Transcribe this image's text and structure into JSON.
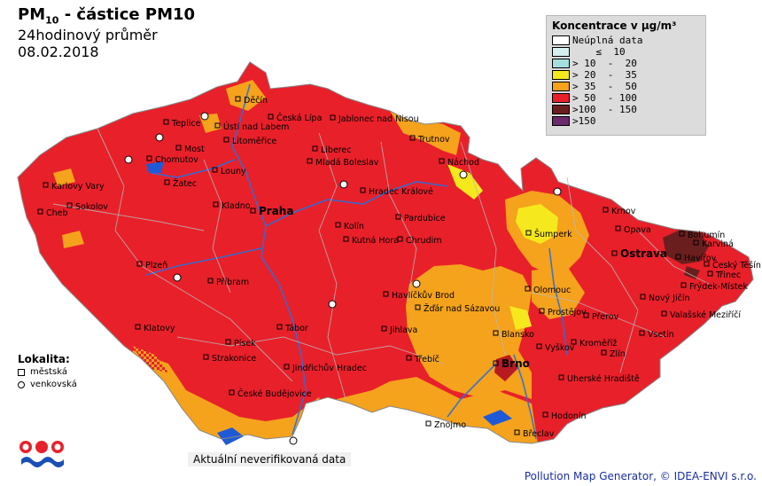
{
  "header": {
    "title_main": "PM",
    "title_sub": "10",
    "title_rest": " - částice PM10",
    "subtitle": "24hodinový průměr",
    "date": "08.02.2018"
  },
  "legend": {
    "title": "Koncentrace v μg/m³",
    "items": [
      {
        "label": "Neúplná data",
        "color": "#ffffff"
      },
      {
        "label": "    ≤  10",
        "color": "#d6f0f0"
      },
      {
        "label": "> 10  -  20",
        "color": "#a6dede"
      },
      {
        "label": "> 20  -  35",
        "color": "#f5e81c"
      },
      {
        "label": "> 35  -  50",
        "color": "#f5a21c"
      },
      {
        "label": "> 50  - 100",
        "color": "#e8202a"
      },
      {
        "label": ">100  - 150",
        "color": "#6b1e1e"
      },
      {
        "label": ">150",
        "color": "#6b2a6b"
      }
    ]
  },
  "map": {
    "towns": [
      {
        "name": "Děčín"
      },
      {
        "name": "Liberec"
      },
      {
        "name": "Česká Lípa"
      },
      {
        "name": "Jablonec nad Nisou"
      },
      {
        "name": "Teplice"
      },
      {
        "name": "Ústí nad Labem"
      },
      {
        "name": "Litoměřice"
      },
      {
        "name": "Trutnov"
      },
      {
        "name": "Most"
      },
      {
        "name": "Chomutov"
      },
      {
        "name": "Mladá Boleslav"
      },
      {
        "name": "Náchod"
      },
      {
        "name": "Karlovy Vary"
      },
      {
        "name": "Žatec"
      },
      {
        "name": "Louny"
      },
      {
        "name": "Sokolov"
      },
      {
        "name": "Hradec Králové"
      },
      {
        "name": "Cheb"
      },
      {
        "name": "Kladno"
      },
      {
        "name": "Praha"
      },
      {
        "name": "Krnov"
      },
      {
        "name": "Pardubice"
      },
      {
        "name": "Kolín"
      },
      {
        "name": "Bohumín"
      },
      {
        "name": "Opava"
      },
      {
        "name": "Šumperk"
      },
      {
        "name": "Karviná"
      },
      {
        "name": "Ostrava"
      },
      {
        "name": "Kutná Hora"
      },
      {
        "name": "Chrudim"
      },
      {
        "name": "Havířov"
      },
      {
        "name": "Český Těšín"
      },
      {
        "name": "Třinec"
      },
      {
        "name": "Plzeň"
      },
      {
        "name": "Frýdek-Místek"
      },
      {
        "name": "Příbram"
      },
      {
        "name": "Olomouc"
      },
      {
        "name": "Nový Jičín"
      },
      {
        "name": "Havlíčkův Brod"
      },
      {
        "name": "Žďár nad Sázavou"
      },
      {
        "name": "Prostějov"
      },
      {
        "name": "Valašské Meziříčí"
      },
      {
        "name": "Přerov"
      },
      {
        "name": "Klatovy"
      },
      {
        "name": "Tábor"
      },
      {
        "name": "Jihlava"
      },
      {
        "name": "Blansko"
      },
      {
        "name": "Vsetín"
      },
      {
        "name": "Písek"
      },
      {
        "name": "Kroměříž"
      },
      {
        "name": "Vyškov"
      },
      {
        "name": "Zlín"
      },
      {
        "name": "Strakonice"
      },
      {
        "name": "Třebíč"
      },
      {
        "name": "Brno"
      },
      {
        "name": "Jindřichův Hradec"
      },
      {
        "name": "Uherské Hradiště"
      },
      {
        "name": "České Budějovice"
      },
      {
        "name": "Hodonín"
      },
      {
        "name": "Znojmo"
      },
      {
        "name": "Břeclav"
      }
    ]
  },
  "lokalita": {
    "title": "Lokalita:",
    "items": [
      {
        "label": "městská"
      },
      {
        "label": "venkovská"
      }
    ]
  },
  "footnote": "Aktuální neverifikovaná data",
  "credit": "Pollution Map Generator, © IDEA-ENVI s.r.o."
}
